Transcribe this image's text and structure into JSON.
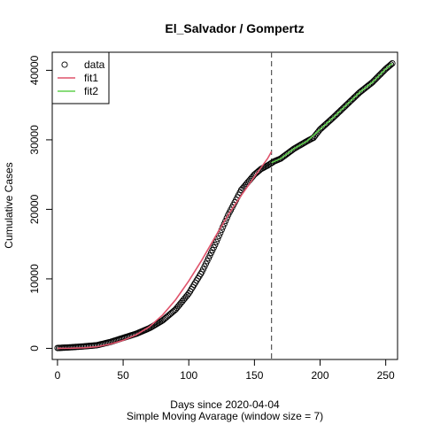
{
  "chart_data": {
    "type": "scatter",
    "title": "El_Salvador / Gompertz",
    "xlabel": "Days since 2020-04-04",
    "xlabel2": "Simple Moving Avarage (window size = 7)",
    "ylabel": "Cumulative Cases",
    "xlim": [
      -4,
      259
    ],
    "ylim": [
      -1600,
      42600
    ],
    "xticks": [
      0,
      50,
      100,
      150,
      200,
      250
    ],
    "yticks": [
      0,
      10000,
      20000,
      30000,
      40000
    ],
    "split_day": 163,
    "legend": [
      "data",
      "fit1",
      "fit2"
    ],
    "legend_position": "top-left",
    "grid": false,
    "colors": {
      "data": "#000000",
      "fit1": "#DF536B",
      "fit2": "#61D04F",
      "vline": "#555555"
    },
    "series": [
      {
        "name": "data",
        "kind": "points",
        "x": [
          0,
          10,
          20,
          30,
          40,
          50,
          60,
          70,
          80,
          90,
          100,
          110,
          120,
          130,
          140,
          150,
          155,
          160,
          165,
          170,
          180,
          190,
          195,
          200,
          210,
          220,
          230,
          240,
          250,
          255
        ],
        "y": [
          50,
          150,
          280,
          450,
          900,
          1500,
          2100,
          2900,
          4000,
          5600,
          7900,
          11000,
          14900,
          19200,
          22800,
          25000,
          25800,
          26300,
          26900,
          27300,
          28700,
          29800,
          30300,
          31500,
          33200,
          35000,
          36800,
          38300,
          40200,
          41000
        ]
      },
      {
        "name": "fit1",
        "kind": "line",
        "x": [
          0,
          10,
          20,
          30,
          40,
          50,
          60,
          70,
          80,
          90,
          100,
          110,
          120,
          130,
          140,
          150,
          155,
          160,
          163
        ],
        "y": [
          0,
          20,
          80,
          230,
          600,
          1150,
          1950,
          3100,
          4800,
          7000,
          9700,
          12700,
          16000,
          19200,
          22000,
          24700,
          26000,
          27300,
          28300
        ]
      },
      {
        "name": "fit2",
        "kind": "line",
        "x": [
          163,
          170,
          180,
          190,
          200,
          210,
          220,
          230,
          240,
          250,
          255
        ],
        "y": [
          26700,
          27300,
          28700,
          29800,
          31500,
          33200,
          35000,
          36800,
          38300,
          40200,
          41000
        ]
      }
    ]
  }
}
